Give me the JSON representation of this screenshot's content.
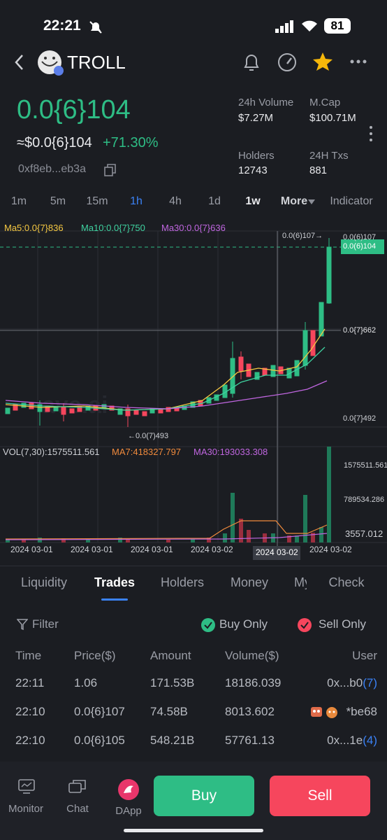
{
  "status_bar": {
    "time": "22:21",
    "battery": "81"
  },
  "header": {
    "title": "TROLL"
  },
  "price": {
    "main": "0.0{6}104",
    "usd": "≈$0.0{6}104",
    "change": "+71.30%",
    "address": "0xf8eb...eb3a"
  },
  "stats": [
    {
      "label": "24h Volume",
      "value": "$7.27M"
    },
    {
      "label": "M.Cap",
      "value": "$100.71M"
    },
    {
      "label": "Holders",
      "value": "12743"
    },
    {
      "label": "24H Txs",
      "value": "881"
    }
  ],
  "intervals": [
    "1m",
    "5m",
    "15m",
    "1h",
    "4h",
    "1d",
    "1w",
    "More"
  ],
  "indicator": "Indicator",
  "chart": {
    "ma_legend": [
      "Ma5:0.0{7}836",
      "Ma10:0.0{7}750",
      "Ma30:0.0{7}636"
    ],
    "high_marker": "0.0(6)107→",
    "low_marker": "←0.0(7)493",
    "price_labels": [
      "0.0(6)107",
      "0.0(6)104",
      "0.0{7}662",
      "0.0{7}492"
    ],
    "vol_legend": [
      "VOL(7,30):1575511.561",
      "MA7:418327.797",
      "MA30:193033.308"
    ],
    "vol_labels": [
      "1575511.561",
      "789534.286",
      "3557.012"
    ],
    "dates": [
      "2024 03-01",
      "2024 03-01",
      "2024 03-01",
      "2024 03-02",
      "2024 03-02"
    ],
    "crosshair_date": "2024 03-02"
  },
  "tabs": [
    "Liquidity",
    "Trades",
    "Holders",
    "Money",
    "My",
    "Check"
  ],
  "filters": {
    "filter": "Filter",
    "buy_only": "Buy Only",
    "sell_only": "Sell Only"
  },
  "table": {
    "headers": [
      "Time",
      "Price($)",
      "Amount",
      "Volume($)",
      "User"
    ],
    "rows": [
      {
        "time": "22:11",
        "price": "1.06",
        "amount": "171.53B",
        "volume": "18186.039",
        "user": "0x...b0",
        "count": "(7)"
      },
      {
        "time": "22:10",
        "price": "0.0{6}107",
        "amount": "74.58B",
        "volume": "8013.602",
        "user": "*be68"
      },
      {
        "time": "22:10",
        "price": "0.0{6}105",
        "amount": "548.21B",
        "volume": "57761.13",
        "user": "0x...1e",
        "count": "(4)"
      }
    ]
  },
  "bottom_nav": [
    "Monitor",
    "Chat",
    "DApp"
  ],
  "buy": "Buy",
  "sell": "Sell"
}
